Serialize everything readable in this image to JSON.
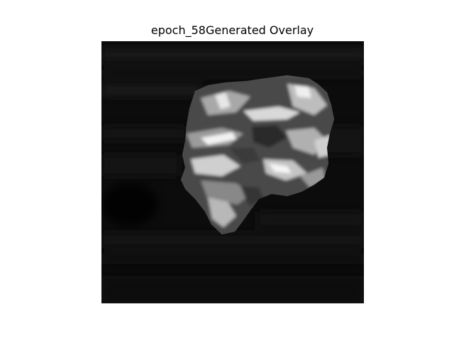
{
  "figure": {
    "title": "epoch_58Generated Overlay"
  },
  "image": {
    "description_icon": "grayscale-overlay-image",
    "background_color": "#0a0a0a",
    "colormap": "gray"
  }
}
